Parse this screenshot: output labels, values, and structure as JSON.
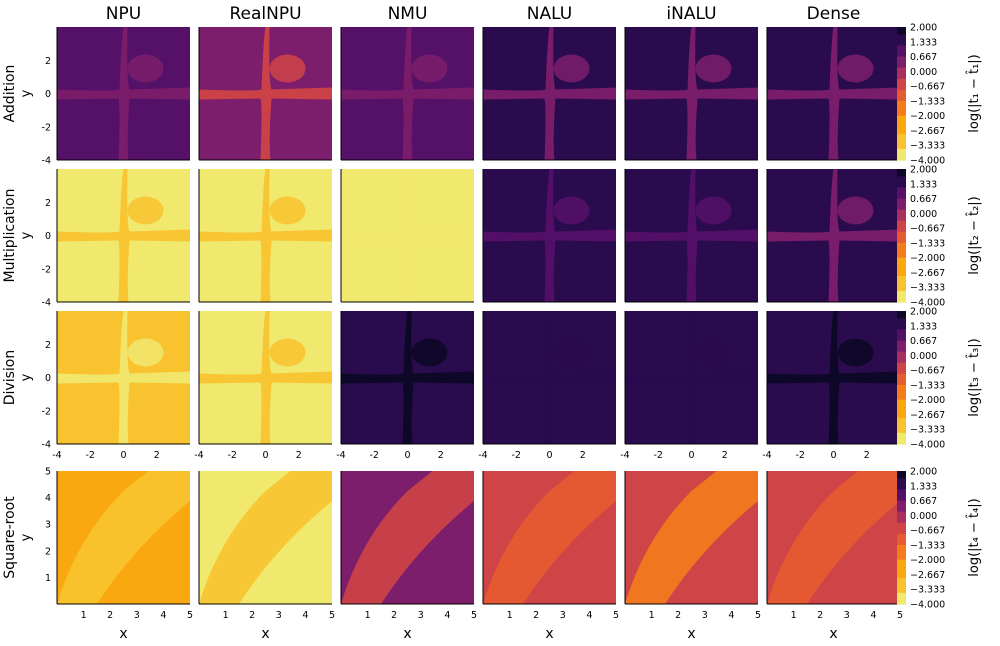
{
  "chart_data": {
    "type": "heatmap",
    "columns": [
      "NPU",
      "RealNPU",
      "NMU",
      "NALU",
      "iNALU",
      "Dense"
    ],
    "rows": [
      {
        "label": "Addition",
        "ylabel": "y",
        "colorbar_label": "log(|t₁ − t̂₁|)",
        "ylim": [
          -4,
          4
        ],
        "yticks": [
          "2",
          "0",
          "-2",
          "-4"
        ],
        "ytick_values": [
          2,
          0,
          -2,
          -4
        ],
        "xlim": [
          -4,
          4
        ],
        "show_xticks": false,
        "levels": {
          "NPU": [
            1.0,
            0.33
          ],
          "RealNPU": [
            0.33,
            -0.33
          ],
          "NMU": [
            1.0,
            0.33
          ],
          "NALU": [
            1.33,
            0.67
          ],
          "iNALU": [
            1.33,
            0.67
          ],
          "Dense": [
            1.33,
            0.67
          ]
        }
      },
      {
        "label": "Multiplication",
        "ylabel": "y",
        "colorbar_label": "log(|t₂ − t̂₂|)",
        "ylim": [
          -4,
          4
        ],
        "yticks": [
          "2",
          "0",
          "-2",
          "-4"
        ],
        "ytick_values": [
          2,
          0,
          -2,
          -4
        ],
        "xlim": [
          -4,
          4
        ],
        "show_xticks": false,
        "levels": {
          "NPU": [
            -3.67,
            -3.0
          ],
          "RealNPU": [
            -3.67,
            -3.33
          ],
          "NMU": [
            -3.67,
            -3.67
          ],
          "NALU": [
            1.67,
            1.0
          ],
          "iNALU": [
            1.67,
            1.0
          ],
          "Dense": [
            1.33,
            0.67
          ]
        }
      },
      {
        "label": "Division",
        "ylabel": "y",
        "colorbar_label": "log(|t₃ − t̂₃|)",
        "ylim": [
          -4,
          4
        ],
        "yticks": [
          "2",
          "0",
          "-2",
          "-4"
        ],
        "ytick_values": [
          2,
          0,
          -2,
          -4
        ],
        "xlim": [
          -4,
          4
        ],
        "xticks": [
          "-4",
          "-2",
          "0",
          "2"
        ],
        "xtick_values": [
          -4,
          -2,
          0,
          2
        ],
        "show_xticks": true,
        "levels": {
          "NPU": [
            -3.0,
            -3.67
          ],
          "RealNPU": [
            -3.67,
            -3.33
          ],
          "NMU": [
            1.67,
            2.0
          ],
          "NALU": [
            1.33,
            1.67
          ],
          "iNALU": [
            1.33,
            1.67
          ],
          "Dense": [
            1.33,
            2.0
          ]
        }
      },
      {
        "label": "Square-root",
        "ylabel": "y",
        "colorbar_label": "log(|t₄ − t̂₄|)",
        "ylim": [
          0,
          5
        ],
        "yticks": [
          "5",
          "4",
          "3",
          "2",
          "1"
        ],
        "ytick_values": [
          5,
          4,
          3,
          2,
          1
        ],
        "xlim": [
          0,
          5
        ],
        "xticks": [
          "1",
          "2",
          "3",
          "4",
          "5"
        ],
        "xtick_values": [
          1,
          2,
          3,
          4,
          5
        ],
        "show_xticks": true,
        "xlabel": "x",
        "levels": {
          "NPU": [
            -2.67,
            -3.0
          ],
          "RealNPU": [
            -3.67,
            -3.0
          ],
          "NMU": [
            0.33,
            -0.33
          ],
          "NALU": [
            -0.33,
            -1.0
          ],
          "iNALU": [
            -0.33,
            -1.33
          ],
          "Dense": [
            -0.33,
            -1.0
          ]
        }
      }
    ],
    "colorbar": {
      "ticks": [
        "2.000",
        "1.333",
        "0.667",
        "0.000",
        "−0.667",
        "−1.333",
        "−2.000",
        "−2.667",
        "−3.333",
        "−4.000"
      ],
      "range": [
        -4,
        2
      ],
      "colormap": "inferno (reversed: dark = 2.0, light yellow = -4.0)"
    },
    "colors": {
      "c2.0": "#0c0826",
      "c1.5": "#2a0b4e",
      "c1.0": "#551068",
      "c0.5": "#7d1e6c",
      "c0.0": "#a82f5e",
      "cm0.5": "#cf4446",
      "cm1.0": "#e55c30",
      "cm1.5": "#f37d1b",
      "cm2.5": "#f9a80f",
      "cm3.0": "#f8c32f",
      "cm4.0": "#f1e86e"
    }
  }
}
